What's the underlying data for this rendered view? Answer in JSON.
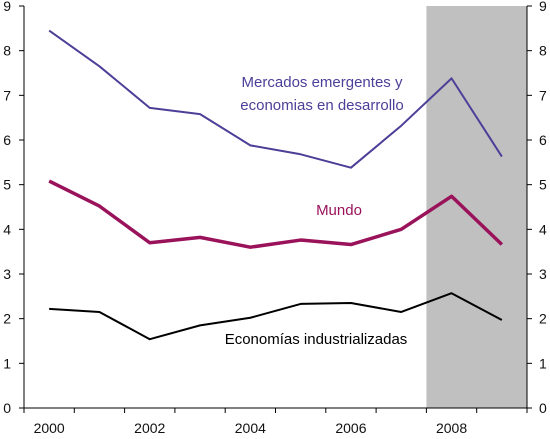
{
  "chart_data": {
    "type": "line",
    "title": "",
    "xlabel": "",
    "ylabel": "",
    "x": [
      2000,
      2001,
      2002,
      2003,
      2004,
      2005,
      2006,
      2007,
      2008,
      2009
    ],
    "x_tick_labels": [
      "2000",
      "2002",
      "2004",
      "2006",
      "2008"
    ],
    "x_tick_values": [
      2000,
      2002,
      2004,
      2006,
      2008
    ],
    "y_tick_labels": [
      "0",
      "1",
      "2",
      "3",
      "4",
      "5",
      "6",
      "7",
      "8",
      "9"
    ],
    "ylim": [
      0,
      9
    ],
    "secondary_y_axis": true,
    "grid": false,
    "shaded_region": {
      "x_from": 2007.5,
      "x_to": 2009.5,
      "color": "#c0c0c0"
    },
    "series": [
      {
        "name_lines": [
          "Mercados emergentes y",
          "economias en desarrollo"
        ],
        "color": "#4b3f98",
        "values": [
          8.45,
          7.65,
          6.72,
          6.58,
          5.88,
          5.68,
          5.38,
          6.32,
          7.38,
          5.63
        ]
      },
      {
        "name_lines": [
          "Mundo"
        ],
        "color": "#99125a",
        "values": [
          5.08,
          4.52,
          3.7,
          3.82,
          3.6,
          3.76,
          3.66,
          4.0,
          4.74,
          3.66
        ]
      },
      {
        "name_lines": [
          "Economías industrializadas"
        ],
        "color": "#000000",
        "values": [
          2.22,
          2.15,
          1.54,
          1.85,
          2.02,
          2.33,
          2.35,
          2.15,
          2.57,
          1.97
        ]
      }
    ]
  }
}
